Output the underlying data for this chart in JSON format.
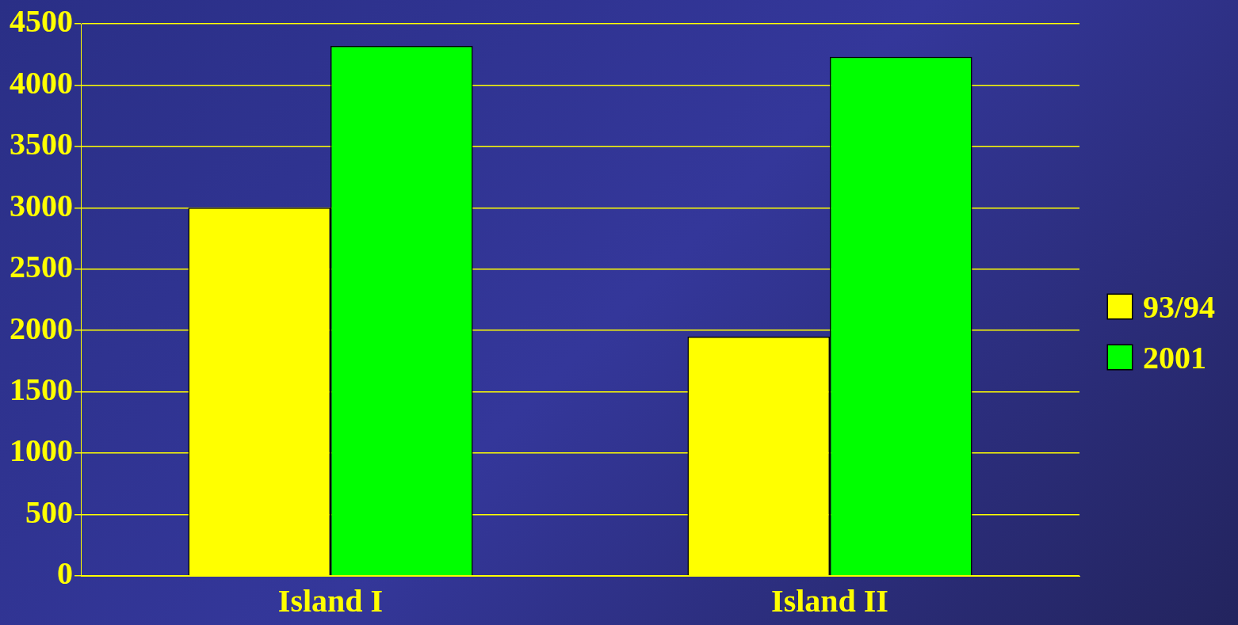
{
  "chart_data": {
    "type": "bar",
    "categories": [
      "Island I",
      "Island II"
    ],
    "series": [
      {
        "name": "93/94",
        "color": "#ffff00",
        "values": [
          3000,
          1950
        ]
      },
      {
        "name": "2001",
        "color": "#00ff00",
        "values": [
          4320,
          4230
        ]
      }
    ],
    "ylim": [
      0,
      4500
    ],
    "yticks": [
      0,
      500,
      1000,
      1500,
      2000,
      2500,
      3000,
      3500,
      4000,
      4500
    ],
    "grid": "y",
    "legend": "right"
  }
}
